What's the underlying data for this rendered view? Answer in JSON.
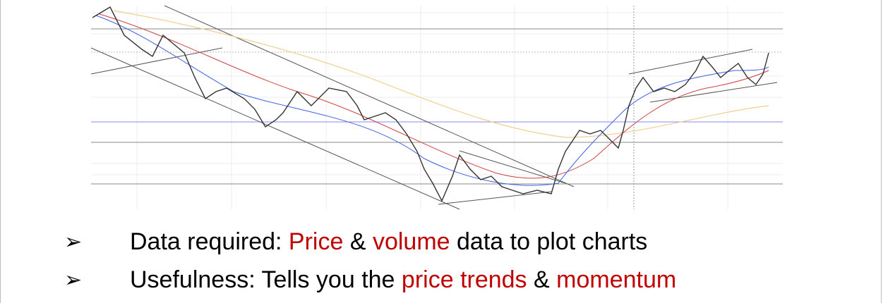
{
  "bullets": [
    {
      "segments": [
        {
          "text": "Data required: ",
          "highlight": false
        },
        {
          "text": "Price",
          "highlight": true
        },
        {
          "text": " & ",
          "highlight": false
        },
        {
          "text": "volume",
          "highlight": true
        },
        {
          "text": " data to plot charts",
          "highlight": false
        }
      ]
    },
    {
      "segments": [
        {
          "text": "Usefulness: Tells you the ",
          "highlight": false
        },
        {
          "text": "price trends",
          "highlight": true
        },
        {
          "text": " & ",
          "highlight": false
        },
        {
          "text": "momentum",
          "highlight": true
        }
      ]
    }
  ]
}
